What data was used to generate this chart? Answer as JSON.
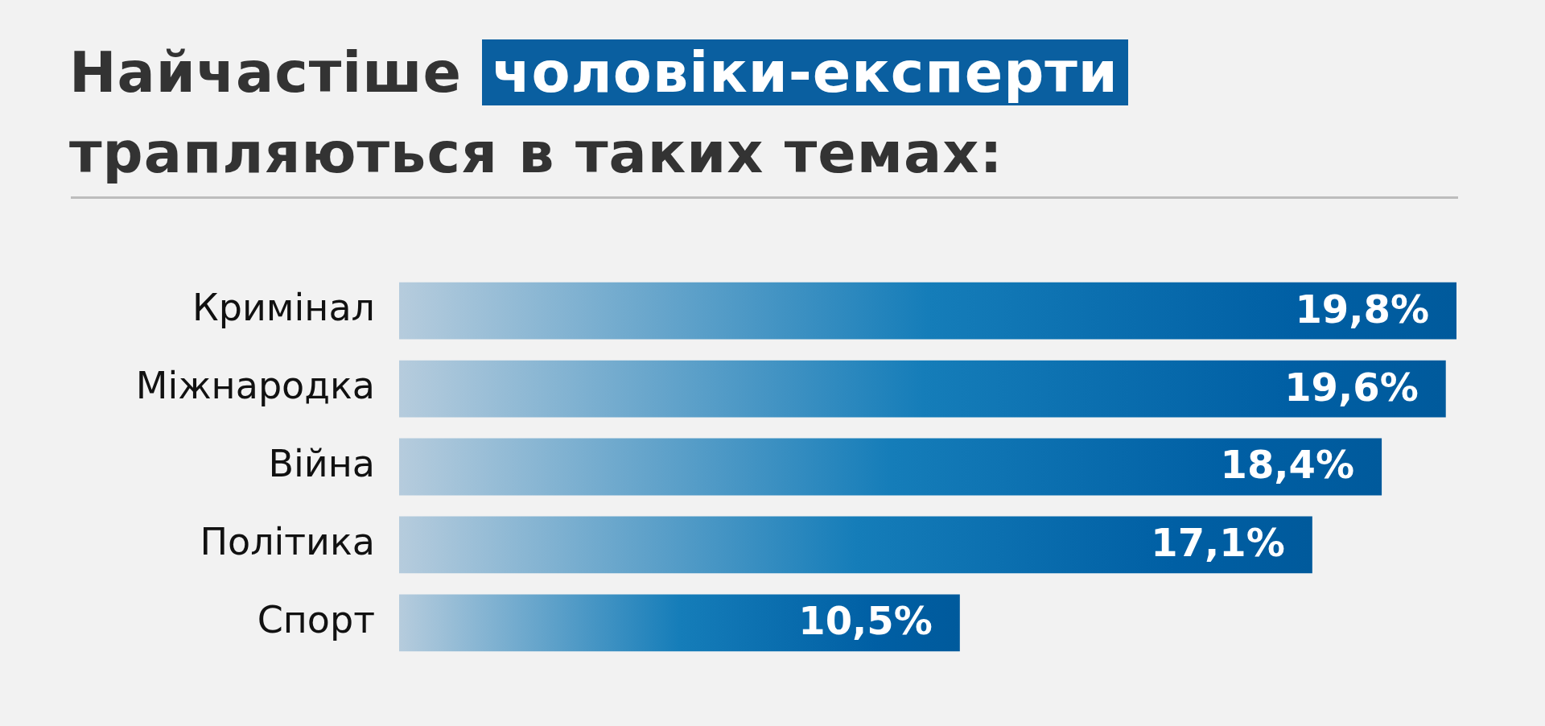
{
  "chart_data": {
    "type": "bar",
    "orientation": "horizontal",
    "title": "Найчастіше чоловіки-експерти трапляються в таких темах:",
    "categories": [
      "Кримінал",
      "Міжнародка",
      "Війна",
      "Політика",
      "Спорт"
    ],
    "values": [
      19.8,
      19.6,
      18.4,
      17.1,
      10.5
    ],
    "value_labels": [
      "19,8%",
      "19,6%",
      "18,4%",
      "17,1%",
      "10,5%"
    ],
    "color": "#005a9c",
    "xlim": [
      0,
      19.8
    ],
    "tick_labels": "y",
    "grid": false,
    "legend": false
  }
}
